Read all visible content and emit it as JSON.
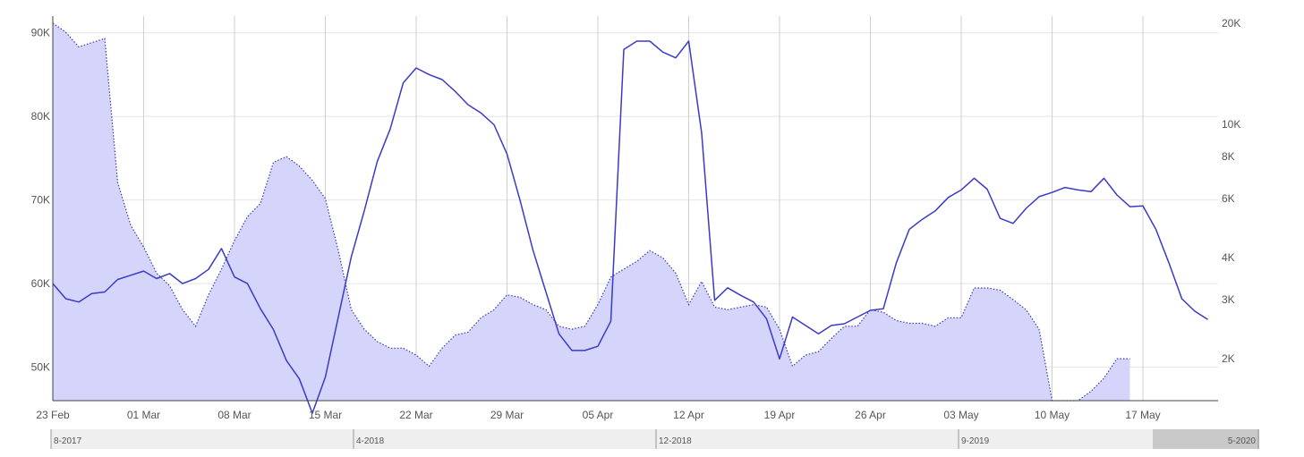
{
  "chart_data": {
    "type": "line",
    "x_ticks": [
      "23 Feb",
      "01 Mar",
      "08 Mar",
      "15 Mar",
      "22 Mar",
      "29 Mar",
      "05 Apr",
      "12 Apr",
      "19 Apr",
      "26 Apr",
      "03 May",
      "10 May",
      "17 May"
    ],
    "y_left": {
      "ticks": [
        50000,
        60000,
        70000,
        80000,
        90000
      ],
      "tick_labels": [
        "50K",
        "60K",
        "70K",
        "80K",
        "90K"
      ],
      "range": [
        46000,
        92000
      ],
      "scale": "linear"
    },
    "y_right": {
      "ticks": [
        2000,
        3000,
        4000,
        6000,
        8000,
        10000,
        20000
      ],
      "tick_labels": [
        "2K",
        "3K",
        "4K",
        "6K",
        "8K",
        "10K",
        "20K"
      ],
      "range": [
        1500,
        21000
      ],
      "scale": "log"
    },
    "grid": true,
    "navigator": {
      "labels": [
        "8-2017",
        "4-2018",
        "12-2018",
        "9-2019",
        "5-2020"
      ]
    },
    "series": [
      {
        "axis": "right",
        "style": "area-dotted",
        "fill_color": "#d5d5fb",
        "stroke_color": "#3a3ab0",
        "values": [
          20000,
          18800,
          17000,
          17500,
          18000,
          6700,
          5000,
          4300,
          3600,
          3300,
          2800,
          2500,
          3100,
          3700,
          4500,
          5300,
          5800,
          7700,
          8000,
          7500,
          6800,
          6000,
          4200,
          2800,
          2450,
          2250,
          2150,
          2150,
          2050,
          1900,
          2150,
          2350,
          2400,
          2650,
          2800,
          3100,
          3050,
          2900,
          2800,
          2500,
          2450,
          2500,
          2900,
          3500,
          3700,
          3900,
          4200,
          4000,
          3600,
          2900,
          3400,
          2850,
          2800,
          2850,
          2900,
          2850,
          2450,
          1900,
          2050,
          2100,
          2300,
          2500,
          2500,
          2800,
          2750,
          2600,
          2550,
          2550,
          2500,
          2650,
          2650,
          3250,
          3250,
          3200,
          3000,
          2800,
          2450,
          1500,
          1500,
          1500,
          1600,
          1750,
          2000,
          2000
        ]
      },
      {
        "axis": "left",
        "style": "line",
        "stroke_color": "#3a3ac8",
        "values": [
          60000,
          58200,
          57800,
          58800,
          59000,
          60500,
          61000,
          61500,
          60600,
          61200,
          60000,
          60600,
          61700,
          64200,
          60800,
          60000,
          57000,
          54500,
          50800,
          48600,
          44500,
          48800,
          56000,
          63200,
          68700,
          74600,
          78500,
          84000,
          85800,
          85000,
          84400,
          83000,
          81400,
          80400,
          79000,
          75500,
          70000,
          64000,
          59000,
          54000,
          52000,
          52000,
          52500,
          55500,
          88000,
          89000,
          89000,
          87700,
          87000,
          89000,
          78000,
          58000,
          59500,
          58600,
          57800,
          55800,
          51000,
          56000,
          55000,
          54000,
          55000,
          55200,
          56000,
          56800,
          57000,
          62500,
          66500,
          67700,
          68700,
          70300,
          71200,
          72600,
          71300,
          67800,
          67200,
          69000,
          70400,
          70900,
          71500,
          71200,
          71000,
          72600,
          70600,
          69200,
          69300,
          66500,
          62500,
          58200,
          56700,
          55700
        ]
      }
    ]
  }
}
